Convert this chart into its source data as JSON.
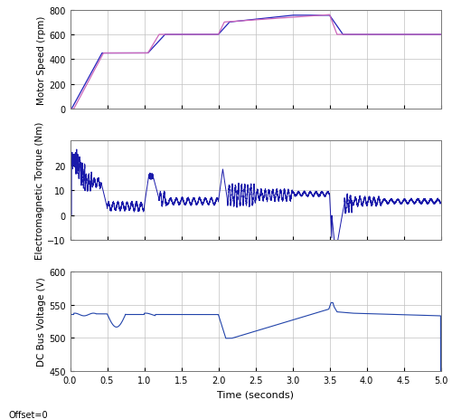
{
  "xlabel": "Time (seconds)",
  "xlim": [
    0,
    5
  ],
  "xticks": [
    0,
    0.5,
    1.0,
    1.5,
    2.0,
    2.5,
    3.0,
    3.5,
    4.0,
    4.5,
    5.0
  ],
  "subplot1": {
    "ylabel": "Motor Speed (rpm)",
    "ylim": [
      0,
      800
    ],
    "yticks": [
      0,
      200,
      400,
      600,
      800
    ],
    "line_color_ref": "#cc66bb",
    "line_color_actual": "#2222bb",
    "line_width": 0.9
  },
  "subplot2": {
    "ylabel": "Electromagnetic Torque (Nm)",
    "ylim": [
      -10,
      30
    ],
    "yticks": [
      -10,
      0,
      10,
      20
    ],
    "line_color": "#1a1aaa",
    "line_width": 0.7
  },
  "subplot3": {
    "ylabel": "DC Bus Voltage (V)",
    "ylim": [
      450,
      600
    ],
    "yticks": [
      450,
      500,
      550,
      600
    ],
    "line_color": "#2244aa",
    "line_width": 0.8
  },
  "offset_label": "Offset=0",
  "bg_color": "#ffffff",
  "plot_bg_color": "#ffffff",
  "grid_color": "#c0c0c0",
  "grid_alpha": 1.0,
  "figsize": [
    5.0,
    4.64
  ],
  "dpi": 100
}
